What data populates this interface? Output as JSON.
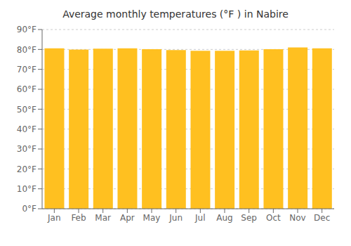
{
  "chart_data": {
    "type": "bar",
    "title": "Average monthly temperatures (°F ) in Nabire",
    "categories": [
      "Jan",
      "Feb",
      "Mar",
      "Apr",
      "May",
      "Jun",
      "Jul",
      "Aug",
      "Sep",
      "Oct",
      "Nov",
      "Dec"
    ],
    "values": [
      80.6,
      79.9,
      80.4,
      80.6,
      80.1,
      79.7,
      79.3,
      79.3,
      79.5,
      80.1,
      81.0,
      80.6
    ],
    "color": "#FFC020",
    "ylim": [
      0,
      90
    ],
    "yticks": [
      {
        "value": 0,
        "label": "0°F"
      },
      {
        "value": 10,
        "label": "10°F"
      },
      {
        "value": 20,
        "label": "20°F"
      },
      {
        "value": 30,
        "label": "30°F"
      },
      {
        "value": 40,
        "label": "40°F"
      },
      {
        "value": 50,
        "label": "50°F"
      },
      {
        "value": 60,
        "label": "60°F"
      },
      {
        "value": 70,
        "label": "70°F"
      },
      {
        "value": 80,
        "label": "80°F"
      },
      {
        "value": 90,
        "label": "90°F"
      }
    ],
    "grid": true
  }
}
